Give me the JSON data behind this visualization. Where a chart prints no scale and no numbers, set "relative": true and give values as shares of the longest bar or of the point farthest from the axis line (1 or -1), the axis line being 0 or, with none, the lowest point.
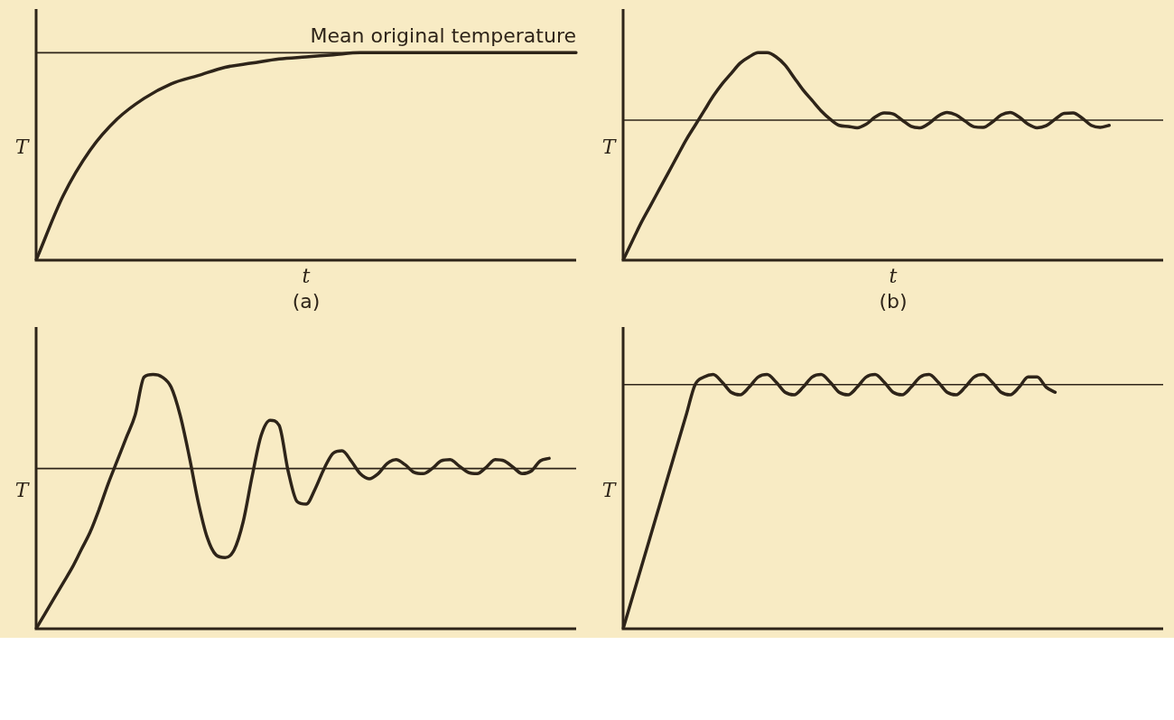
{
  "chart_data": [
    {
      "type": "line",
      "relative": true,
      "xlabel": "t",
      "ylabel": "T",
      "annotations": [
        "(a)"
      ],
      "categories": [
        null,
        null,
        null,
        null,
        null,
        null,
        null,
        null,
        null,
        null,
        null,
        null,
        null,
        null,
        null,
        null,
        null,
        null,
        null,
        null,
        null
      ],
      "series": [
        {
          "color": "#2e2419",
          "values": [
            0,
            0.31,
            0.53,
            0.68,
            0.78,
            0.85,
            0.89,
            0.93,
            0.95,
            0.97,
            0.98,
            0.99,
            1,
            1,
            1,
            1,
            1,
            1,
            1,
            1,
            1
          ]
        }
      ],
      "ref_lines": [
        {
          "axis": "y",
          "value": 1,
          "label": "Mean original temperature"
        }
      ]
    },
    {
      "type": "line",
      "relative": true,
      "xlabel": "t",
      "ylabel": "T",
      "annotations": [
        "(b)"
      ],
      "categories": [
        null,
        null,
        null,
        null,
        null,
        null,
        null,
        null,
        null,
        null,
        null,
        null,
        null,
        null,
        null,
        null,
        null,
        null,
        null,
        null,
        null,
        null,
        null,
        null,
        null,
        null,
        null,
        null,
        null,
        null,
        null,
        null,
        null,
        null,
        null,
        null,
        null,
        null,
        null,
        null,
        null,
        null,
        null,
        null,
        null,
        null,
        null,
        null,
        null,
        null,
        null,
        null,
        null,
        null,
        null,
        null,
        null,
        null,
        null,
        null,
        null
      ],
      "series": [
        {
          "color": "#2e2419",
          "values": [
            0,
            0.09,
            0.18,
            0.26,
            0.34,
            0.42,
            0.5,
            0.58,
            0.65,
            0.72,
            0.79,
            0.85,
            0.9,
            0.95,
            0.98,
            1,
            1,
            0.98,
            0.94,
            0.88,
            0.82,
            0.77,
            0.72,
            0.68,
            0.65,
            0.645,
            0.638,
            0.655,
            0.69,
            0.71,
            0.705,
            0.675,
            0.645,
            0.638,
            0.66,
            0.695,
            0.712,
            0.7,
            0.67,
            0.643,
            0.64,
            0.665,
            0.7,
            0.712,
            0.69,
            0.655,
            0.638,
            0.648,
            0.68,
            0.708,
            0.71,
            0.685,
            0.65,
            0.64,
            0.65,
            null,
            null,
            null,
            null,
            null,
            null
          ]
        }
      ],
      "ref_lines": [
        {
          "axis": "y",
          "value": 0.675
        }
      ]
    },
    {
      "type": "line",
      "relative": true,
      "ylabel": "T",
      "categories": [
        null,
        null,
        null,
        null,
        null,
        null,
        null,
        null,
        null,
        null,
        null,
        null,
        null,
        null,
        null,
        null,
        null,
        null,
        null,
        null,
        null,
        null,
        null,
        null,
        null,
        null,
        null,
        null,
        null,
        null,
        null,
        null,
        null,
        null,
        null,
        null,
        null,
        null,
        null,
        null,
        null,
        null,
        null,
        null,
        null,
        null,
        null,
        null,
        null,
        null,
        null,
        null,
        null,
        null,
        null,
        null,
        null,
        null,
        null,
        null,
        null
      ],
      "series": [
        {
          "color": "#2e2419",
          "values": [
            0,
            0.06,
            0.12,
            0.18,
            0.24,
            0.31,
            0.38,
            0.47,
            0.57,
            0.66,
            0.75,
            0.84,
            0.99,
            1,
            0.99,
            0.95,
            0.84,
            0.68,
            0.5,
            0.36,
            0.29,
            0.28,
            0.31,
            0.42,
            0.6,
            0.76,
            0.82,
            0.8,
            0.62,
            0.5,
            0.49,
            0.55,
            0.63,
            0.69,
            0.7,
            0.66,
            0.61,
            0.59,
            0.61,
            0.65,
            0.665,
            0.645,
            0.615,
            0.61,
            0.63,
            0.66,
            0.665,
            0.64,
            0.615,
            0.61,
            0.635,
            0.665,
            0.66,
            0.635,
            0.61,
            0.62,
            0.66,
            0.67,
            null,
            null,
            null
          ]
        }
      ],
      "ref_lines": [
        {
          "axis": "y",
          "value": 0.63
        }
      ]
    },
    {
      "type": "line",
      "relative": true,
      "ylabel": "T",
      "categories": [
        null,
        null,
        null,
        null,
        null,
        null,
        null,
        null,
        null,
        null,
        null,
        null,
        null,
        null,
        null,
        null,
        null,
        null,
        null,
        null,
        null,
        null,
        null,
        null,
        null,
        null,
        null,
        null,
        null,
        null,
        null,
        null,
        null,
        null,
        null,
        null,
        null,
        null,
        null,
        null,
        null,
        null,
        null,
        null,
        null,
        null,
        null,
        null,
        null,
        null,
        null,
        null,
        null,
        null,
        null,
        null,
        null,
        null,
        null,
        null,
        null
      ],
      "series": [
        {
          "color": "#2e2419",
          "values": [
            0,
            0.12,
            0.24,
            0.36,
            0.48,
            0.6,
            0.72,
            0.84,
            0.96,
            0.99,
            1,
            0.97,
            0.93,
            0.92,
            0.95,
            0.99,
            1,
            0.97,
            0.93,
            0.92,
            0.95,
            0.99,
            1,
            0.97,
            0.93,
            0.92,
            0.95,
            0.99,
            1,
            0.97,
            0.93,
            0.92,
            0.95,
            0.99,
            1,
            0.97,
            0.93,
            0.92,
            0.95,
            0.99,
            1,
            0.97,
            0.93,
            0.92,
            0.95,
            0.99,
            0.99,
            0.95,
            0.93,
            null,
            null,
            null,
            null,
            null,
            null,
            null,
            null,
            null,
            null,
            null,
            null
          ]
        }
      ],
      "ref_lines": [
        {
          "axis": "y",
          "value": 0.96
        }
      ]
    }
  ]
}
